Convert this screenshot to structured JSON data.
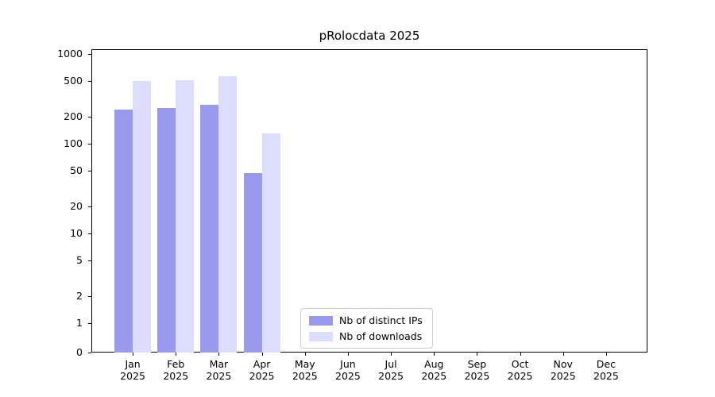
{
  "chart_data": {
    "type": "bar",
    "title": "pRolocdata 2025",
    "year": "2025",
    "categories": [
      "Jan",
      "Feb",
      "Mar",
      "Apr",
      "May",
      "Jun",
      "Jul",
      "Aug",
      "Sep",
      "Oct",
      "Nov",
      "Dec"
    ],
    "series": [
      {
        "name": "Nb of distinct IPs",
        "color": "#9999ee",
        "values": [
          240,
          248,
          272,
          47,
          0,
          0,
          0,
          0,
          0,
          0,
          0,
          0
        ]
      },
      {
        "name": "Nb of downloads",
        "color": "#ddddff",
        "values": [
          505,
          515,
          560,
          130,
          0,
          0,
          0,
          0,
          0,
          0,
          0,
          0
        ]
      }
    ],
    "y_scale": "symlog",
    "ylim": [
      0,
      1000
    ],
    "y_ticks": [
      0,
      1,
      2,
      5,
      10,
      20,
      50,
      100,
      200,
      500,
      1000
    ],
    "grid": true,
    "legend_position": "lower center"
  }
}
